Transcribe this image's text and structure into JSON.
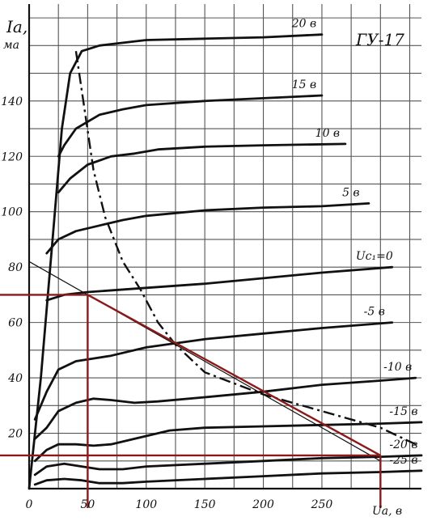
{
  "chart_data": {
    "type": "line",
    "title": "ГУ-17",
    "ylabel": "Ia, ма",
    "xlabel": "Ua, в",
    "xlim": [
      0,
      335
    ],
    "ylim": [
      0,
      175
    ],
    "x_ticks": [
      "0",
      "50",
      "100",
      "150",
      "200",
      "250"
    ],
    "y_ticks": [
      "20",
      "40",
      "60",
      "80",
      "100",
      "120",
      "140"
    ],
    "series": [
      {
        "name": "20в",
        "label": "20 в",
        "points": [
          [
            0,
            0
          ],
          [
            10,
            40
          ],
          [
            20,
            90
          ],
          [
            28,
            130
          ],
          [
            35,
            150
          ],
          [
            45,
            158
          ],
          [
            60,
            160
          ],
          [
            80,
            161
          ],
          [
            100,
            162
          ],
          [
            150,
            162.5
          ],
          [
            200,
            163
          ],
          [
            250,
            164
          ]
        ]
      },
      {
        "name": "15в",
        "label": "15 в",
        "points": [
          [
            25,
            120
          ],
          [
            30,
            124
          ],
          [
            40,
            130
          ],
          [
            60,
            135
          ],
          [
            80,
            137
          ],
          [
            100,
            138.5
          ],
          [
            150,
            140
          ],
          [
            200,
            141
          ],
          [
            250,
            142
          ]
        ]
      },
      {
        "name": "10в",
        "label": "10 в",
        "points": [
          [
            25,
            107
          ],
          [
            35,
            112
          ],
          [
            50,
            117
          ],
          [
            70,
            120
          ],
          [
            90,
            121
          ],
          [
            110,
            122.5
          ],
          [
            150,
            123.5
          ],
          [
            200,
            124
          ],
          [
            270,
            124.5
          ]
        ]
      },
      {
        "name": "5в",
        "label": "5 в",
        "points": [
          [
            15,
            85
          ],
          [
            25,
            90
          ],
          [
            40,
            93
          ],
          [
            60,
            95
          ],
          [
            80,
            97
          ],
          [
            100,
            98.5
          ],
          [
            150,
            100.5
          ],
          [
            200,
            101.5
          ],
          [
            250,
            102
          ],
          [
            290,
            103
          ]
        ]
      },
      {
        "name": "0в",
        "label": "Uс₁=0",
        "points": [
          [
            15,
            68
          ],
          [
            30,
            70
          ],
          [
            50,
            71
          ],
          [
            100,
            72.5
          ],
          [
            150,
            74
          ],
          [
            200,
            76
          ],
          [
            250,
            78
          ],
          [
            310,
            80
          ]
        ]
      },
      {
        "name": "-5в",
        "label": "-5 в",
        "points": [
          [
            5,
            25
          ],
          [
            15,
            35
          ],
          [
            25,
            43
          ],
          [
            40,
            46
          ],
          [
            55,
            47
          ],
          [
            70,
            48
          ],
          [
            100,
            51
          ],
          [
            150,
            54
          ],
          [
            200,
            56
          ],
          [
            250,
            58
          ],
          [
            310,
            60
          ]
        ]
      },
      {
        "name": "-10в",
        "label": "-10 в",
        "points": [
          [
            5,
            18
          ],
          [
            15,
            22
          ],
          [
            25,
            28
          ],
          [
            40,
            31
          ],
          [
            55,
            32.5
          ],
          [
            70,
            32
          ],
          [
            90,
            31
          ],
          [
            110,
            31.5
          ],
          [
            150,
            33
          ],
          [
            200,
            35
          ],
          [
            250,
            37.5
          ],
          [
            300,
            39
          ],
          [
            330,
            40
          ]
        ]
      },
      {
        "name": "-15в",
        "label": "-15 в",
        "points": [
          [
            5,
            10
          ],
          [
            15,
            14
          ],
          [
            25,
            16
          ],
          [
            40,
            16
          ],
          [
            55,
            15.5
          ],
          [
            70,
            16
          ],
          [
            90,
            18
          ],
          [
            120,
            21
          ],
          [
            150,
            22
          ],
          [
            200,
            22.5
          ],
          [
            250,
            23
          ],
          [
            300,
            23.5
          ],
          [
            335,
            24
          ]
        ]
      },
      {
        "name": "-20в",
        "label": "-20 в",
        "points": [
          [
            5,
            5
          ],
          [
            15,
            8
          ],
          [
            30,
            9
          ],
          [
            45,
            8
          ],
          [
            60,
            7
          ],
          [
            80,
            7
          ],
          [
            100,
            8
          ],
          [
            150,
            9
          ],
          [
            200,
            10
          ],
          [
            250,
            11
          ],
          [
            300,
            11.5
          ],
          [
            335,
            12
          ]
        ]
      },
      {
        "name": "-25в",
        "label": "-25 в",
        "points": [
          [
            5,
            1.5
          ],
          [
            15,
            3
          ],
          [
            30,
            3.5
          ],
          [
            45,
            3
          ],
          [
            60,
            2
          ],
          [
            80,
            2
          ],
          [
            100,
            2.5
          ],
          [
            150,
            3.5
          ],
          [
            200,
            4.5
          ],
          [
            250,
            5.5
          ],
          [
            300,
            6
          ],
          [
            335,
            6.5
          ]
        ]
      }
    ],
    "dissipation_curve": [
      [
        40,
        158
      ],
      [
        48,
        135
      ],
      [
        55,
        115
      ],
      [
        65,
        98
      ],
      [
        80,
        82
      ],
      [
        95,
        72
      ],
      [
        110,
        60
      ],
      [
        125,
        52
      ],
      [
        150,
        42
      ],
      [
        200,
        34
      ],
      [
        250,
        28
      ],
      [
        300,
        22
      ],
      [
        330,
        16
      ]
    ],
    "load_line": [
      [
        0,
        82
      ],
      [
        300,
        10
      ]
    ],
    "operating_points": [
      {
        "x": 50,
        "y": 70
      },
      {
        "x": 300,
        "y": 12
      }
    ]
  }
}
